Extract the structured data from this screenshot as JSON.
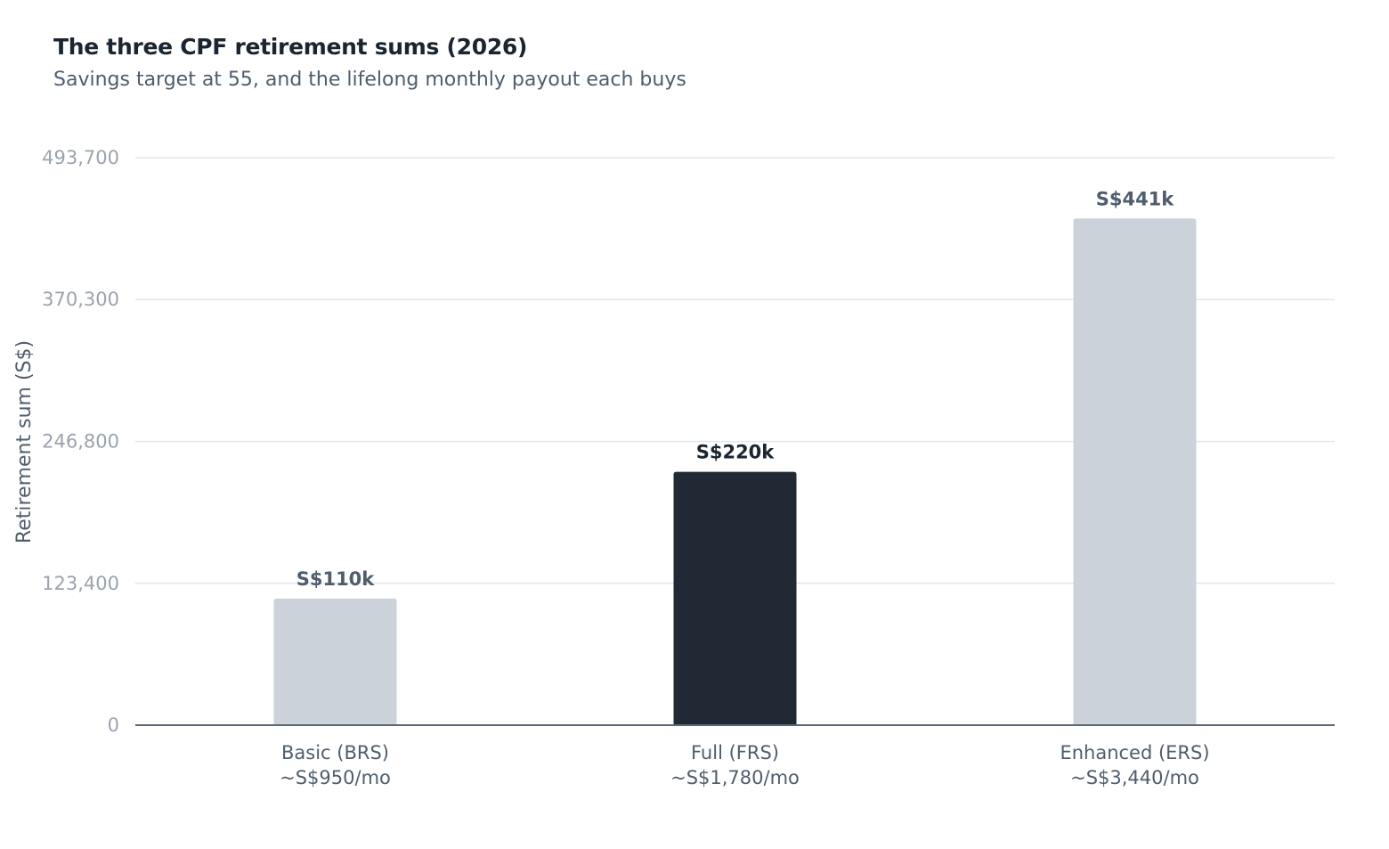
{
  "chart_data": {
    "type": "bar",
    "title": "The three CPF retirement sums (2026)",
    "subtitle": "Savings target at 55, and the lifelong monthly payout each buys",
    "ylabel": "Retirement sum (S$)",
    "ylim": [
      0,
      493700
    ],
    "yticks": [
      0,
      123400,
      246800,
      370300,
      493700
    ],
    "ytick_labels": [
      "0",
      "123,400",
      "246,800",
      "370,300",
      "493,700"
    ],
    "grid": true,
    "categories": [
      "Basic (BRS)",
      "Full (FRS)",
      "Enhanced (ERS)"
    ],
    "category_sublabels": [
      "~S$950/mo",
      "~S$1,780/mo",
      "~S$3,440/mo"
    ],
    "values": [
      110200,
      220400,
      440800
    ],
    "value_labels": [
      "S$110k",
      "S$220k",
      "S$441k"
    ],
    "highlight_index": 1,
    "colors": {
      "bar": "#ccd2da",
      "highlight": "#212a34",
      "value_label": "#4f5d6d",
      "value_label_highlight": "#1b2530"
    }
  }
}
